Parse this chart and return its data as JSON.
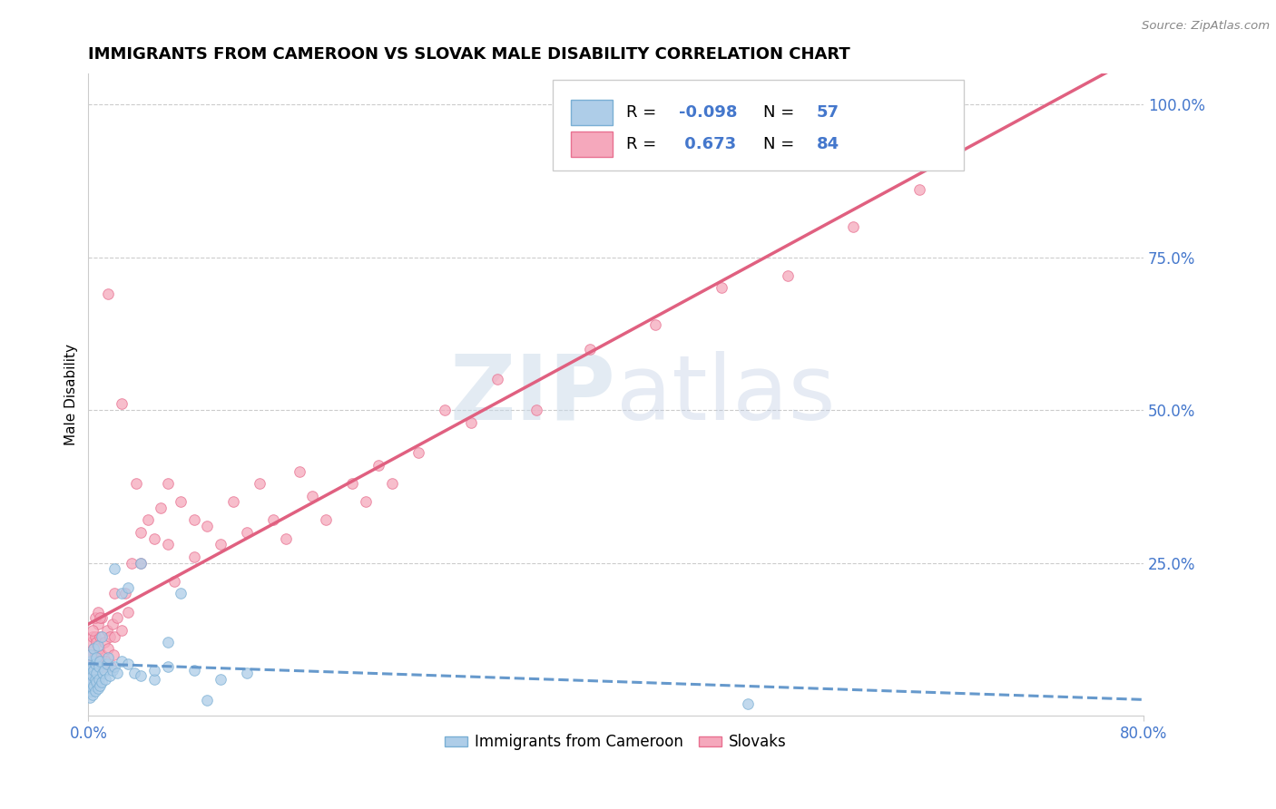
{
  "title": "IMMIGRANTS FROM CAMEROON VS SLOVAK MALE DISABILITY CORRELATION CHART",
  "source": "Source: ZipAtlas.com",
  "ylabel": "Male Disability",
  "xlim": [
    0.0,
    0.8
  ],
  "ylim": [
    0.0,
    1.05
  ],
  "r_cameroon": -0.098,
  "n_cameroon": 57,
  "r_slovak": 0.673,
  "n_slovak": 84,
  "color_cameroon_fill": "#AECDE8",
  "color_cameroon_edge": "#7AAFD4",
  "color_slovak_fill": "#F5A8BC",
  "color_slovak_edge": "#E87090",
  "color_line_cameroon": "#6699CC",
  "color_line_slovak": "#E06080",
  "color_axis_labels": "#4477CC",
  "color_r_values": "#4477CC",
  "watermark_zip": "ZIP",
  "watermark_atlas": "atlas",
  "scatter_cameroon_x": [
    0.0005,
    0.001,
    0.001,
    0.0015,
    0.0015,
    0.002,
    0.002,
    0.002,
    0.0025,
    0.003,
    0.003,
    0.003,
    0.003,
    0.004,
    0.004,
    0.004,
    0.005,
    0.005,
    0.005,
    0.006,
    0.006,
    0.006,
    0.007,
    0.007,
    0.008,
    0.008,
    0.009,
    0.009,
    0.01,
    0.01,
    0.011,
    0.012,
    0.013,
    0.014,
    0.015,
    0.016,
    0.018,
    0.02,
    0.022,
    0.025,
    0.03,
    0.035,
    0.04,
    0.05,
    0.06,
    0.08,
    0.09,
    0.1,
    0.12,
    0.02,
    0.025,
    0.03,
    0.04,
    0.05,
    0.06,
    0.07,
    0.5
  ],
  "scatter_cameroon_y": [
    0.05,
    0.08,
    0.03,
    0.06,
    0.09,
    0.07,
    0.04,
    0.1,
    0.055,
    0.065,
    0.045,
    0.08,
    0.035,
    0.075,
    0.05,
    0.11,
    0.06,
    0.085,
    0.04,
    0.095,
    0.055,
    0.07,
    0.045,
    0.115,
    0.06,
    0.08,
    0.05,
    0.09,
    0.055,
    0.13,
    0.07,
    0.075,
    0.06,
    0.085,
    0.095,
    0.065,
    0.075,
    0.08,
    0.07,
    0.09,
    0.085,
    0.07,
    0.065,
    0.06,
    0.08,
    0.075,
    0.025,
    0.06,
    0.07,
    0.24,
    0.2,
    0.21,
    0.25,
    0.075,
    0.12,
    0.2,
    0.02
  ],
  "scatter_slovak_x": [
    0.001,
    0.001,
    0.002,
    0.002,
    0.002,
    0.003,
    0.003,
    0.003,
    0.004,
    0.004,
    0.004,
    0.005,
    0.005,
    0.005,
    0.006,
    0.006,
    0.006,
    0.007,
    0.007,
    0.008,
    0.008,
    0.009,
    0.009,
    0.01,
    0.01,
    0.011,
    0.012,
    0.013,
    0.014,
    0.015,
    0.016,
    0.017,
    0.018,
    0.019,
    0.02,
    0.022,
    0.025,
    0.028,
    0.03,
    0.033,
    0.036,
    0.04,
    0.045,
    0.05,
    0.055,
    0.06,
    0.065,
    0.07,
    0.08,
    0.09,
    0.1,
    0.11,
    0.12,
    0.13,
    0.14,
    0.15,
    0.16,
    0.17,
    0.18,
    0.2,
    0.21,
    0.22,
    0.23,
    0.25,
    0.27,
    0.29,
    0.31,
    0.34,
    0.38,
    0.43,
    0.48,
    0.53,
    0.58,
    0.63,
    0.003,
    0.005,
    0.007,
    0.009,
    0.02,
    0.04,
    0.06,
    0.08,
    0.015,
    0.025
  ],
  "scatter_slovak_y": [
    0.06,
    0.1,
    0.07,
    0.12,
    0.05,
    0.08,
    0.13,
    0.06,
    0.09,
    0.11,
    0.07,
    0.1,
    0.13,
    0.06,
    0.09,
    0.12,
    0.07,
    0.1,
    0.15,
    0.08,
    0.11,
    0.09,
    0.13,
    0.1,
    0.16,
    0.08,
    0.12,
    0.09,
    0.14,
    0.11,
    0.13,
    0.08,
    0.15,
    0.1,
    0.13,
    0.16,
    0.14,
    0.2,
    0.17,
    0.25,
    0.38,
    0.3,
    0.32,
    0.29,
    0.34,
    0.38,
    0.22,
    0.35,
    0.26,
    0.31,
    0.28,
    0.35,
    0.3,
    0.38,
    0.32,
    0.29,
    0.4,
    0.36,
    0.32,
    0.38,
    0.35,
    0.41,
    0.38,
    0.43,
    0.5,
    0.48,
    0.55,
    0.5,
    0.6,
    0.64,
    0.7,
    0.72,
    0.8,
    0.86,
    0.14,
    0.16,
    0.17,
    0.16,
    0.2,
    0.25,
    0.28,
    0.32,
    0.69,
    0.51
  ]
}
